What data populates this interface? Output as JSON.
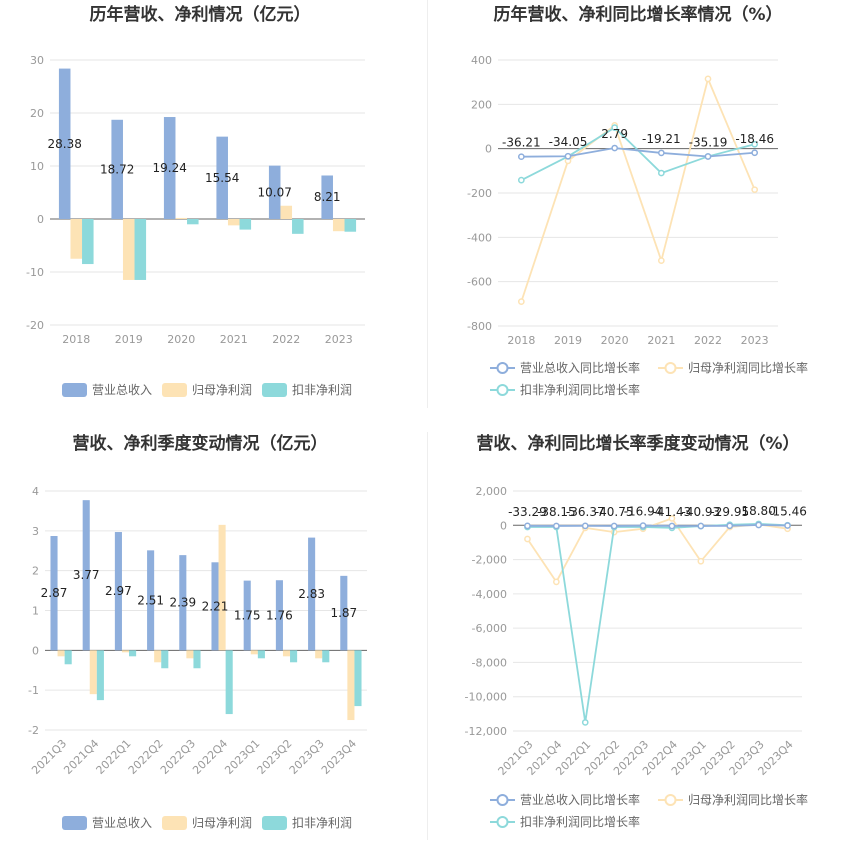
{
  "colors": {
    "revenue": "#8eaedc",
    "parent_profit": "#fde3b5",
    "non_recurring_profit": "#8dd9db",
    "revenue_line": "#8eaedc",
    "parent_line": "#fde3b5",
    "non_recurring_line": "#8dd9db"
  },
  "chart_data": [
    {
      "id": "annual-bar",
      "type": "bar",
      "title": "历年营收、净利情况（亿元）",
      "categories": [
        "2018",
        "2019",
        "2020",
        "2021",
        "2022",
        "2023"
      ],
      "series": [
        {
          "name": "营业总收入",
          "values": [
            28.38,
            18.72,
            19.24,
            15.54,
            10.07,
            8.21
          ]
        },
        {
          "name": "归母净利润",
          "values": [
            -7.5,
            -11.5,
            0.2,
            -1.2,
            2.5,
            -2.3
          ]
        },
        {
          "name": "扣非净利润",
          "values": [
            -8.5,
            -11.5,
            -1.0,
            -2.0,
            -2.8,
            -2.4
          ]
        }
      ],
      "data_labels": [
        "28.38",
        "18.72",
        "19.24",
        "15.54",
        "10.07",
        "8.21"
      ],
      "yticks": [
        "30",
        "20",
        "10",
        "0",
        "-10",
        "-20"
      ],
      "ylim": [
        -20,
        30
      ],
      "legend": "bottom",
      "grid": true
    },
    {
      "id": "annual-line",
      "type": "line",
      "title": "历年营收、净利同比增长率情况（%）",
      "categories": [
        "2018",
        "2019",
        "2020",
        "2021",
        "2022",
        "2023"
      ],
      "series": [
        {
          "name": "营业总收入同比增长率",
          "values": [
            -36.21,
            -34.05,
            2.79,
            -19.21,
            -35.19,
            -18.46
          ]
        },
        {
          "name": "归母净利润同比增长率",
          "values": [
            -690,
            -55,
            105,
            -505,
            315,
            -185
          ]
        },
        {
          "name": "扣非净利润同比增长率",
          "values": [
            -142,
            -35,
            95,
            -110,
            -35,
            20
          ]
        }
      ],
      "data_labels": [
        "-36.21",
        "-34.05",
        "2.79",
        "-19.21",
        "-35.19",
        "-18.46"
      ],
      "yticks": [
        "400",
        "200",
        "0",
        "-200",
        "-400",
        "-600",
        "-800"
      ],
      "ylim": [
        -800,
        400
      ],
      "legend": "bottom",
      "grid": true
    },
    {
      "id": "quarter-bar",
      "type": "bar",
      "title": "营收、净利季度变动情况（亿元）",
      "categories": [
        "2021Q3",
        "2021Q4",
        "2022Q1",
        "2022Q2",
        "2022Q3",
        "2022Q4",
        "2023Q1",
        "2023Q2",
        "2023Q3",
        "2023Q4"
      ],
      "series": [
        {
          "name": "营业总收入",
          "values": [
            2.87,
            3.77,
            2.97,
            2.51,
            2.39,
            2.21,
            1.75,
            1.76,
            2.83,
            1.87
          ]
        },
        {
          "name": "归母净利润",
          "values": [
            -0.15,
            -1.1,
            -0.05,
            -0.3,
            -0.2,
            3.15,
            -0.1,
            -0.15,
            -0.2,
            -1.75
          ]
        },
        {
          "name": "扣非净利润",
          "values": [
            -0.35,
            -1.25,
            -0.15,
            -0.45,
            -0.45,
            -1.6,
            -0.2,
            -0.3,
            -0.3,
            -1.4
          ]
        }
      ],
      "data_labels": [
        "2.87",
        "3.77",
        "2.97",
        "2.51",
        "2.39",
        "2.21",
        "1.75",
        "1.76",
        "2.83",
        "1.87"
      ],
      "yticks": [
        "4",
        "3",
        "2",
        "1",
        "0",
        "-1",
        "-2"
      ],
      "ylim": [
        -2,
        4
      ],
      "legend": "bottom",
      "grid": true
    },
    {
      "id": "quarter-line",
      "type": "line",
      "title": "营收、净利同比增长率季度变动情况（%）",
      "categories": [
        "2021Q3",
        "2021Q4",
        "2022Q1",
        "2022Q2",
        "2022Q3",
        "2022Q4",
        "2023Q1",
        "2023Q2",
        "2023Q3",
        "2023Q4"
      ],
      "series": [
        {
          "name": "营业总收入同比增长率",
          "values": [
            -33.29,
            -38.15,
            -36.37,
            -40.75,
            -16.94,
            -41.43,
            -40.93,
            -29.95,
            18.8,
            -15.46
          ]
        },
        {
          "name": "归母净利润同比增长率",
          "values": [
            -800,
            -3300,
            -150,
            -400,
            -200,
            400,
            -2100,
            -100,
            50,
            -200
          ]
        },
        {
          "name": "扣非净利润同比增长率",
          "values": [
            -100,
            -100,
            -11500,
            -100,
            -100,
            -150,
            -50,
            30,
            80,
            0
          ]
        }
      ],
      "data_labels": [
        "-33.29",
        "-38.15",
        "-36.37",
        "-40.75",
        "-16.94",
        "-41.43",
        "-40.93",
        "-29.95",
        "18.80",
        "-15.46"
      ],
      "yticks": [
        "2,000",
        "0",
        "-2,000",
        "-4,000",
        "-6,000",
        "-8,000",
        "-10,000",
        "-12,000"
      ],
      "ylim": [
        -12000,
        2000
      ],
      "legend": "bottom",
      "grid": true
    }
  ]
}
